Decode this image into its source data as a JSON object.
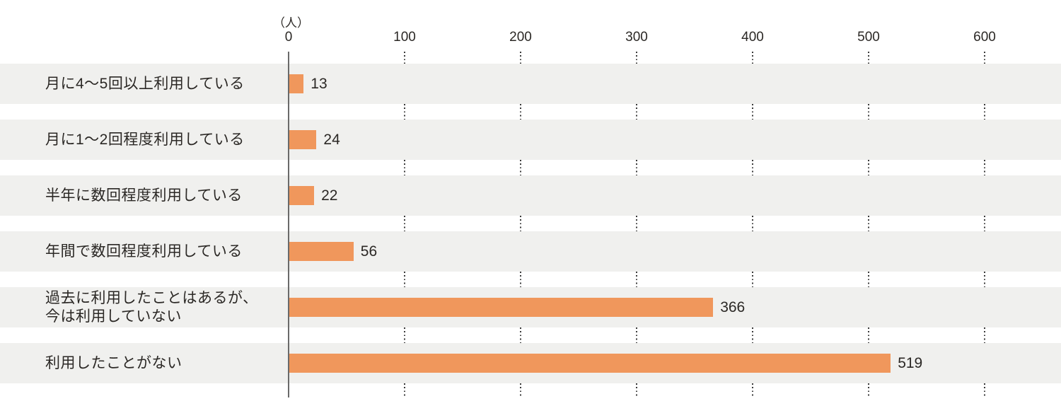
{
  "chart_data": {
    "type": "bar",
    "orientation": "horizontal",
    "title": "",
    "unit_label": "（人）",
    "xlabel": "",
    "ylabel": "",
    "xlim": [
      0,
      600
    ],
    "x_ticks": [
      0,
      100,
      200,
      300,
      400,
      500,
      600
    ],
    "grid": "dotted vertical gridlines, visible only in gaps between row stripes",
    "legend": "none",
    "rows": [
      {
        "label_lines": [
          "月に4〜5回以上利用している"
        ],
        "value": 13
      },
      {
        "label_lines": [
          "月に1〜2回程度利用している"
        ],
        "value": 24
      },
      {
        "label_lines": [
          "半年に数回程度利用している"
        ],
        "value": 22
      },
      {
        "label_lines": [
          "年間で数回程度利用している"
        ],
        "value": 56
      },
      {
        "label_lines": [
          "過去に利用したことはあるが、",
          "今は利用していない"
        ],
        "value": 366
      },
      {
        "label_lines": [
          "利用したことがない"
        ],
        "value": 519
      }
    ],
    "categories": [
      "月に4〜5回以上利用している",
      "月に1〜2回程度利用している",
      "半年に数回程度利用している",
      "年間で数回程度利用している",
      "過去に利用したことはあるが、今は利用していない",
      "利用したことがない"
    ],
    "values": [
      13,
      24,
      22,
      56,
      366,
      519
    ],
    "colors": {
      "bar": "#f0975c",
      "row_stripe": "#f0f0ee",
      "axis_line": "#6a6a6a",
      "grid_dots": "#3b3b3b",
      "text": "#2b2825",
      "background": "#ffffff"
    }
  }
}
